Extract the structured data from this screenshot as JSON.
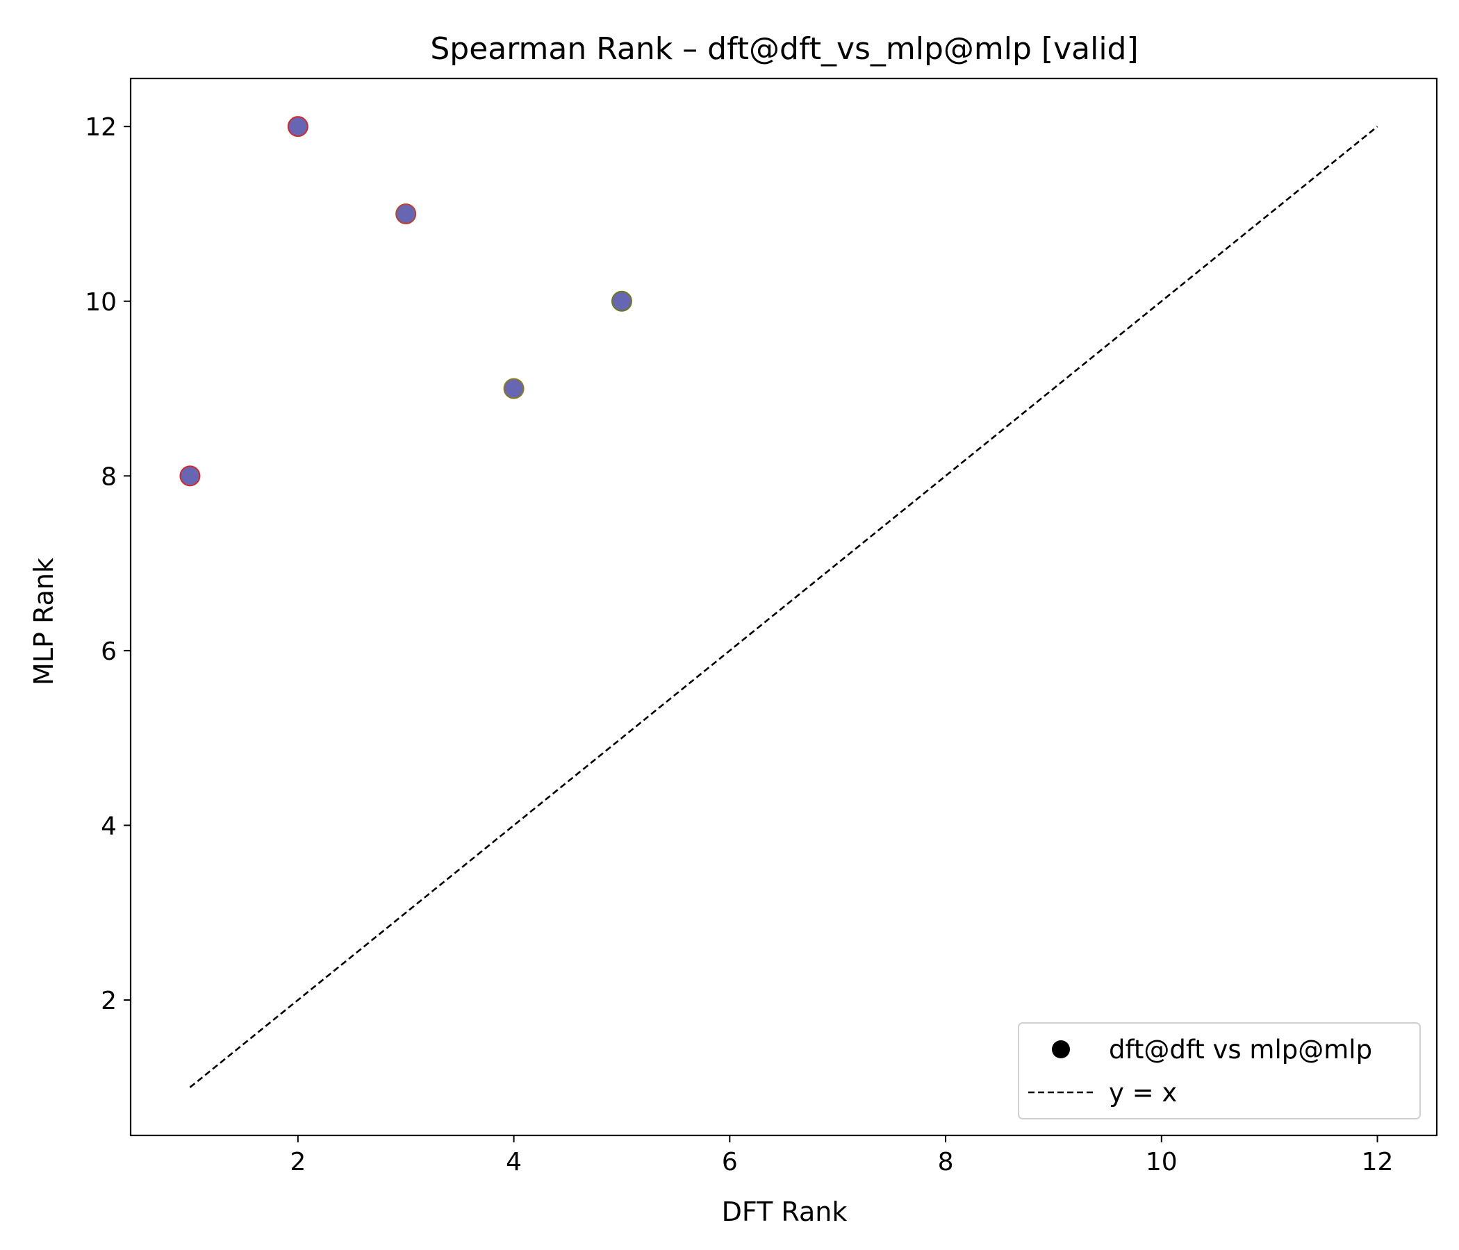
{
  "chart_data": {
    "type": "scatter",
    "title": "Spearman Rank – dft@dft_vs_mlp@mlp [valid]",
    "xlabel": "DFT Rank",
    "ylabel": "MLP Rank",
    "xlim": [
      0.45,
      12.55
    ],
    "ylim": [
      0.45,
      12.55
    ],
    "xticks": [
      2,
      4,
      6,
      8,
      10,
      12
    ],
    "yticks": [
      2,
      4,
      6,
      8,
      10,
      12
    ],
    "grid": false,
    "legend_position": "bottom-right",
    "series": [
      {
        "name": "dft@dft vs mlp@mlp",
        "kind": "scatter",
        "fill_color": "#6666b3",
        "points": [
          {
            "x": 1,
            "y": 8,
            "edge_color": "#d62728"
          },
          {
            "x": 2,
            "y": 12,
            "edge_color": "#d62728"
          },
          {
            "x": 3,
            "y": 11,
            "edge_color": "#c2402a"
          },
          {
            "x": 4,
            "y": 9,
            "edge_color": "#8a7a1a"
          },
          {
            "x": 5,
            "y": 10,
            "edge_color": "#6b7a1a"
          }
        ]
      },
      {
        "name": "y = x",
        "kind": "line",
        "dashed": true,
        "color": "#000000",
        "x": [
          1,
          12
        ],
        "y": [
          1,
          12
        ]
      }
    ],
    "legend": [
      {
        "label": "dft@dft vs mlp@mlp",
        "marker": "dot"
      },
      {
        "label": "y = x",
        "marker": "dash"
      }
    ]
  }
}
